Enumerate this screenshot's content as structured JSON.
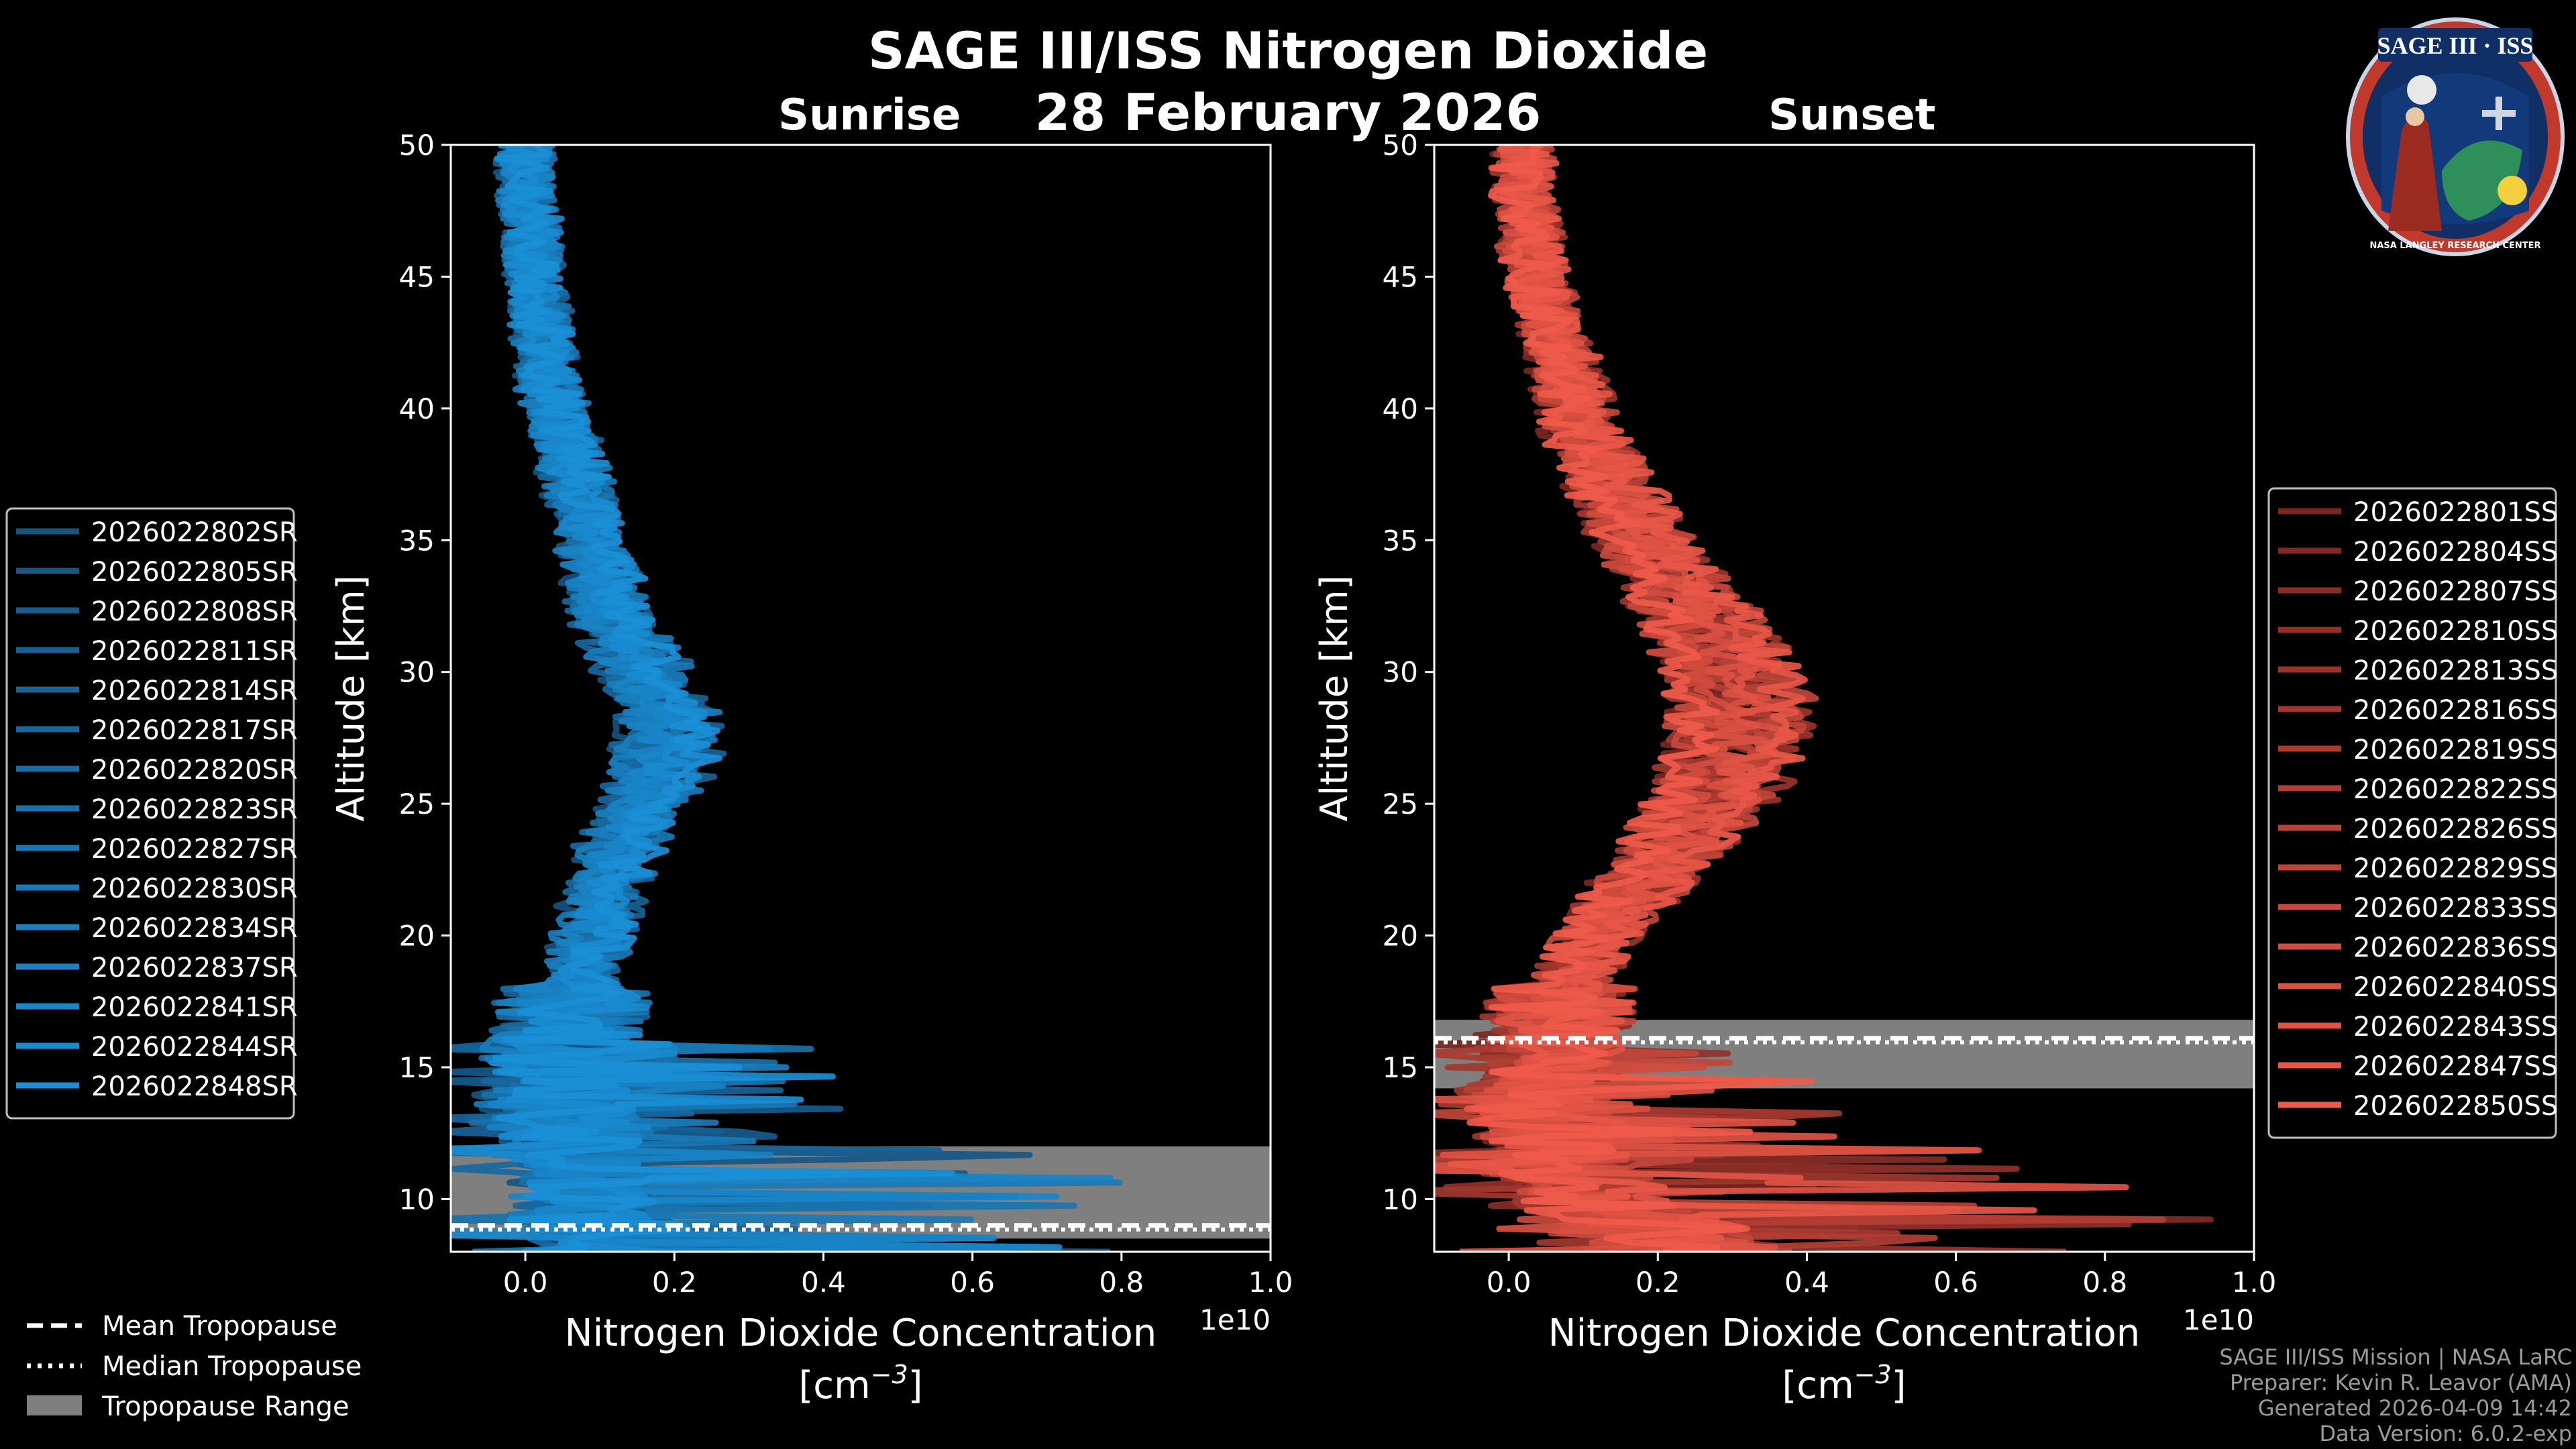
{
  "header": {
    "title": "SAGE III/ISS Nitrogen Dioxide",
    "date": "28 February 2026",
    "left_panel_title": "Sunrise",
    "right_panel_title": "Sunset"
  },
  "logo": {
    "text": "SAGE III · ISS",
    "ring_text": "NASA LANGLEY RESEARCH CENTER"
  },
  "footer": {
    "line1": "SAGE III/ISS Mission | NASA LaRC",
    "line2": "Preparer: Kevin R. Leavor (AMA)",
    "line3": "Generated 2026-04-09 14:42",
    "line4": "Data Version: 6.0.2-exp"
  },
  "tropo_legend": {
    "mean": "Mean Tropopause",
    "median": "Median Tropopause",
    "range": "Tropopause Range"
  },
  "colors": {
    "sunrise": "#1a8fd6",
    "sunset": "#ef5a4a",
    "tropo_fill": "#7f7f7f"
  },
  "chart_data": [
    {
      "type": "line",
      "name": "sunrise",
      "title": "Sunrise",
      "xlabel": "Nitrogen Dioxide Concentration",
      "xunit": "[cm",
      "xunit_exp": "−3",
      "xunit_end": "]",
      "ylabel": "Altitude [km]",
      "offset_text": "1e10",
      "xlim": [
        -0.1,
        1.0
      ],
      "ylim": [
        8,
        50
      ],
      "xticks": [
        0.0,
        0.2,
        0.4,
        0.6,
        0.8,
        1.0
      ],
      "xtick_labels": [
        "0.0",
        "0.2",
        "0.4",
        "0.6",
        "0.8",
        "1.0"
      ],
      "yticks": [
        10,
        15,
        20,
        25,
        30,
        35,
        40,
        45,
        50
      ],
      "ytick_labels": [
        "10",
        "15",
        "20",
        "25",
        "30",
        "35",
        "40",
        "45",
        "50"
      ],
      "tropopause": {
        "mean": 9.0,
        "median": 9.0,
        "range": [
          8.5,
          12.0
        ]
      },
      "profile_shape": {
        "alt": [
          8,
          9,
          10,
          11,
          12,
          13,
          14,
          15,
          16,
          17,
          18,
          19,
          20,
          21,
          22,
          23,
          24,
          25,
          26,
          27,
          28,
          29,
          30,
          31,
          32,
          33,
          34,
          35,
          36,
          37,
          38,
          39,
          40,
          41,
          42,
          43,
          44,
          45,
          46,
          47,
          48,
          49,
          50
        ],
        "conc": [
          0.12,
          0.1,
          0.08,
          0.07,
          0.06,
          0.05,
          0.04,
          0.04,
          0.05,
          0.06,
          0.07,
          0.08,
          0.09,
          0.1,
          0.11,
          0.12,
          0.14,
          0.16,
          0.18,
          0.19,
          0.19,
          0.18,
          0.16,
          0.14,
          0.12,
          0.11,
          0.1,
          0.09,
          0.08,
          0.07,
          0.06,
          0.05,
          0.04,
          0.03,
          0.03,
          0.02,
          0.02,
          0.01,
          0.01,
          0.01,
          0.0,
          0.0,
          0.0
        ]
      },
      "legend_position": "center-left",
      "series": [
        {
          "name": "2026022802SR"
        },
        {
          "name": "2026022805SR"
        },
        {
          "name": "2026022808SR"
        },
        {
          "name": "2026022811SR"
        },
        {
          "name": "2026022814SR"
        },
        {
          "name": "2026022817SR"
        },
        {
          "name": "2026022820SR"
        },
        {
          "name": "2026022823SR"
        },
        {
          "name": "2026022827SR"
        },
        {
          "name": "2026022830SR"
        },
        {
          "name": "2026022834SR"
        },
        {
          "name": "2026022837SR"
        },
        {
          "name": "2026022841SR"
        },
        {
          "name": "2026022844SR"
        },
        {
          "name": "2026022848SR"
        }
      ]
    },
    {
      "type": "line",
      "name": "sunset",
      "title": "Sunset",
      "xlabel": "Nitrogen Dioxide Concentration",
      "xunit": "[cm",
      "xunit_exp": "−3",
      "xunit_end": "]",
      "ylabel": "Altitude [km]",
      "offset_text": "1e10",
      "xlim": [
        -0.1,
        1.0
      ],
      "ylim": [
        8,
        50
      ],
      "xticks": [
        0.0,
        0.2,
        0.4,
        0.6,
        0.8,
        1.0
      ],
      "xtick_labels": [
        "0.0",
        "0.2",
        "0.4",
        "0.6",
        "0.8",
        "1.0"
      ],
      "yticks": [
        10,
        15,
        20,
        25,
        30,
        35,
        40,
        45,
        50
      ],
      "ytick_labels": [
        "10",
        "15",
        "20",
        "25",
        "30",
        "35",
        "40",
        "45",
        "50"
      ],
      "tropopause": {
        "mean": 16.1,
        "median": 16.1,
        "range": [
          14.2,
          16.8
        ]
      },
      "profile_shape": {
        "alt": [
          8,
          9,
          10,
          11,
          12,
          13,
          14,
          15,
          16,
          17,
          18,
          19,
          20,
          21,
          22,
          23,
          24,
          25,
          26,
          27,
          28,
          29,
          30,
          31,
          32,
          33,
          34,
          35,
          36,
          37,
          38,
          39,
          40,
          41,
          42,
          43,
          44,
          45,
          46,
          47,
          48,
          49,
          50
        ],
        "conc": [
          0.25,
          0.18,
          0.12,
          0.08,
          0.06,
          0.05,
          0.05,
          0.05,
          0.06,
          0.07,
          0.08,
          0.1,
          0.12,
          0.15,
          0.18,
          0.21,
          0.24,
          0.27,
          0.29,
          0.3,
          0.31,
          0.31,
          0.3,
          0.28,
          0.26,
          0.23,
          0.21,
          0.18,
          0.16,
          0.14,
          0.12,
          0.1,
          0.09,
          0.08,
          0.07,
          0.06,
          0.05,
          0.04,
          0.03,
          0.03,
          0.02,
          0.02,
          0.02
        ]
      },
      "legend_position": "center-right",
      "series": [
        {
          "name": "2026022801SS"
        },
        {
          "name": "2026022804SS"
        },
        {
          "name": "2026022807SS"
        },
        {
          "name": "2026022810SS"
        },
        {
          "name": "2026022813SS"
        },
        {
          "name": "2026022816SS"
        },
        {
          "name": "2026022819SS"
        },
        {
          "name": "2026022822SS"
        },
        {
          "name": "2026022826SS"
        },
        {
          "name": "2026022829SS"
        },
        {
          "name": "2026022833SS"
        },
        {
          "name": "2026022836SS"
        },
        {
          "name": "2026022840SS"
        },
        {
          "name": "2026022843SS"
        },
        {
          "name": "2026022847SS"
        },
        {
          "name": "2026022850SS"
        }
      ]
    }
  ]
}
